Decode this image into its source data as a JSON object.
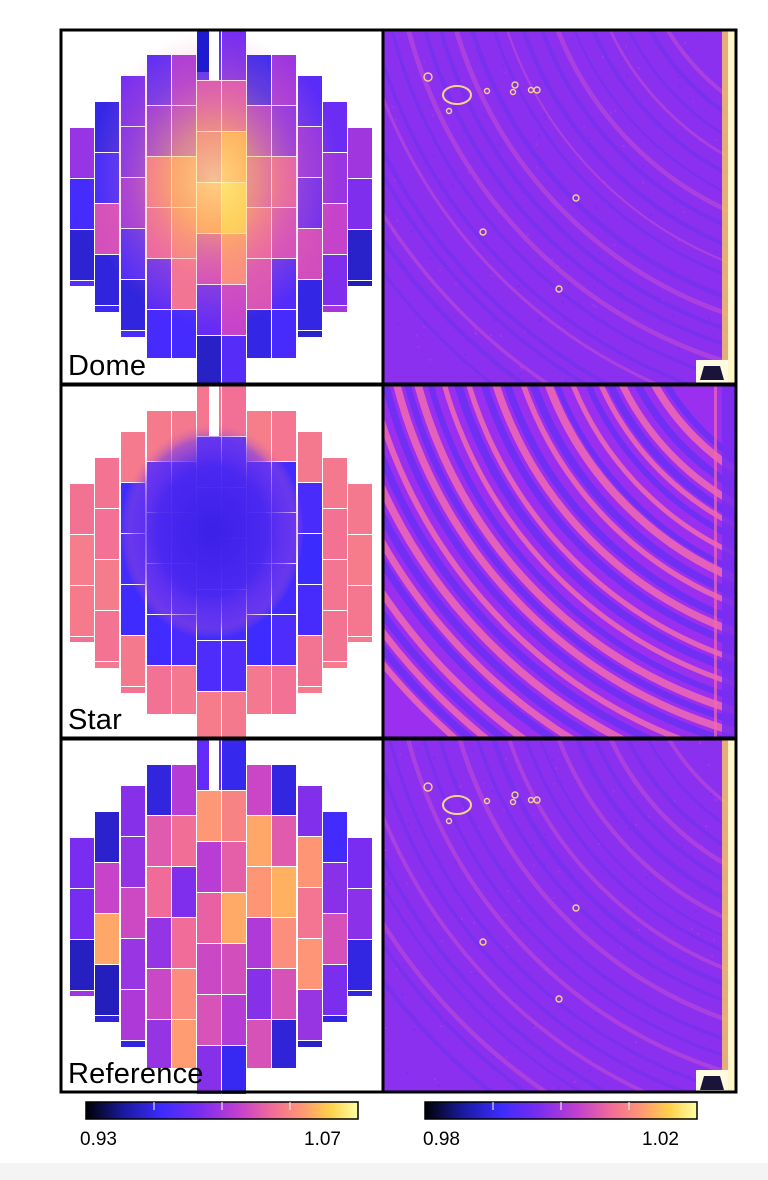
{
  "rows": [
    {
      "label": "Dome",
      "left_style": "dome",
      "right_style": "dome"
    },
    {
      "label": "Star",
      "left_style": "star",
      "right_style": "star"
    },
    {
      "label": "Reference",
      "left_style": "reference",
      "right_style": "reference"
    }
  ],
  "colorbars": [
    {
      "min_label": "0.93",
      "max_label": "1.07"
    },
    {
      "min_label": "0.98",
      "max_label": "1.02"
    }
  ],
  "colormap": [
    "#000004",
    "#1a1aa0",
    "#3d2bff",
    "#7a2df0",
    "#c23fcf",
    "#f06a9a",
    "#ff9a72",
    "#ffd24a",
    "#fcffa4"
  ],
  "panel_border_color": "#000000"
}
